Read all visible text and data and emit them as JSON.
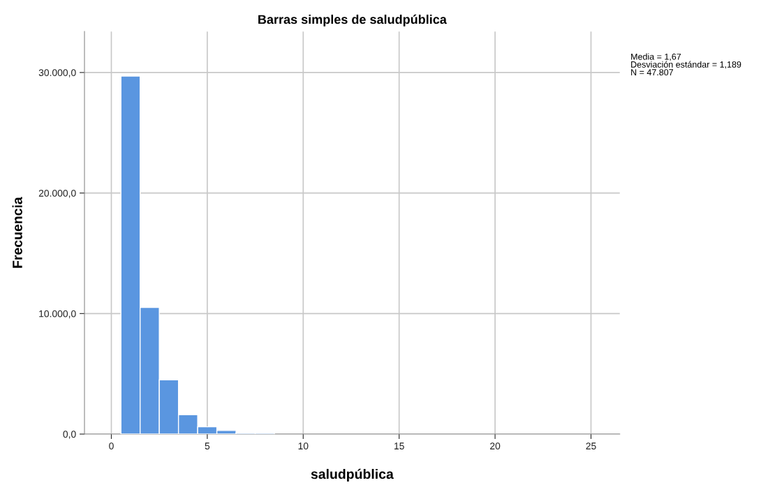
{
  "chart_data": {
    "type": "histogram",
    "title": "Barras simples de saludpública",
    "xlabel": "saludpública",
    "ylabel": "Frecuencia",
    "bins": [
      0.5,
      1.5,
      2.5,
      3.5,
      4.5,
      5.5,
      6.5,
      7.5,
      8.5
    ],
    "values": [
      29700,
      10500,
      4500,
      1600,
      600,
      300,
      100,
      100
    ],
    "color": "#5a96e0",
    "xlim": [
      -1.4,
      26.5
    ],
    "xticks": [
      0,
      5,
      10,
      15,
      20,
      25
    ],
    "ylim": [
      0,
      33400
    ],
    "yticks": [
      {
        "value": 0,
        "label": "0,0"
      },
      {
        "value": 10000,
        "label": "10.000,0"
      },
      {
        "value": 20000,
        "label": "20.000,0"
      },
      {
        "value": 30000,
        "label": "30.000,0"
      }
    ],
    "grid": true,
    "annotations": [
      "Media = 1,67\nDesviación estándar = 1,189\nN = 47.807"
    ]
  }
}
